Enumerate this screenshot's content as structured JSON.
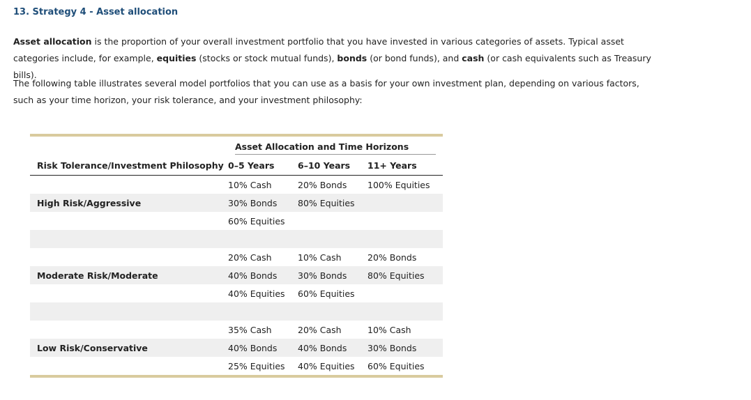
{
  "heading": "13. Strategy 4 - Asset allocation",
  "para1": {
    "parts": [
      {
        "b": true,
        "t": "Asset allocation"
      },
      {
        "b": false,
        "t": " is the proportion of your overall investment portfolio that you have invested in various categories of assets. Typical asset categories include, for example, "
      },
      {
        "b": true,
        "t": "equities"
      },
      {
        "b": false,
        "t": " (stocks or stock mutual funds), "
      },
      {
        "b": true,
        "t": "bonds"
      },
      {
        "b": false,
        "t": " (or bond funds), and "
      },
      {
        "b": true,
        "t": "cash"
      },
      {
        "b": false,
        "t": " (or cash equivalents such as Treasury bills)."
      }
    ]
  },
  "para2": "The following table illustrates several model portfolios that you can use as a basis for your own investment plan, depending on various factors, such as your time horizon, your risk tolerance, and your investment philosophy:",
  "table": {
    "group_header": "Asset Allocation and Time Horizons",
    "headers": [
      "Risk Tolerance/Investment Philosophy",
      "0–5 Years",
      "6–10 Years",
      "11+ Years"
    ],
    "rows": [
      [
        "",
        "10% Cash",
        "20% Bonds",
        "100% Equities"
      ],
      [
        "High Risk/Aggressive",
        "30% Bonds",
        "80% Equities",
        ""
      ],
      [
        "",
        "60% Equities",
        "",
        ""
      ],
      [
        "",
        "",
        "",
        ""
      ],
      [
        "",
        "20% Cash",
        "10% Cash",
        "20% Bonds"
      ],
      [
        "Moderate Risk/Moderate",
        "40% Bonds",
        "30% Bonds",
        "80% Equities"
      ],
      [
        "",
        "40% Equities",
        "60% Equities",
        ""
      ],
      [
        "",
        "",
        "",
        ""
      ],
      [
        "",
        "35% Cash",
        "20% Cash",
        "10% Cash"
      ],
      [
        "Low Risk/Conservative",
        "40% Bonds",
        "40% Bonds",
        "30% Bonds"
      ],
      [
        "",
        "25% Equities",
        "40% Equities",
        "60% Equities"
      ]
    ]
  }
}
